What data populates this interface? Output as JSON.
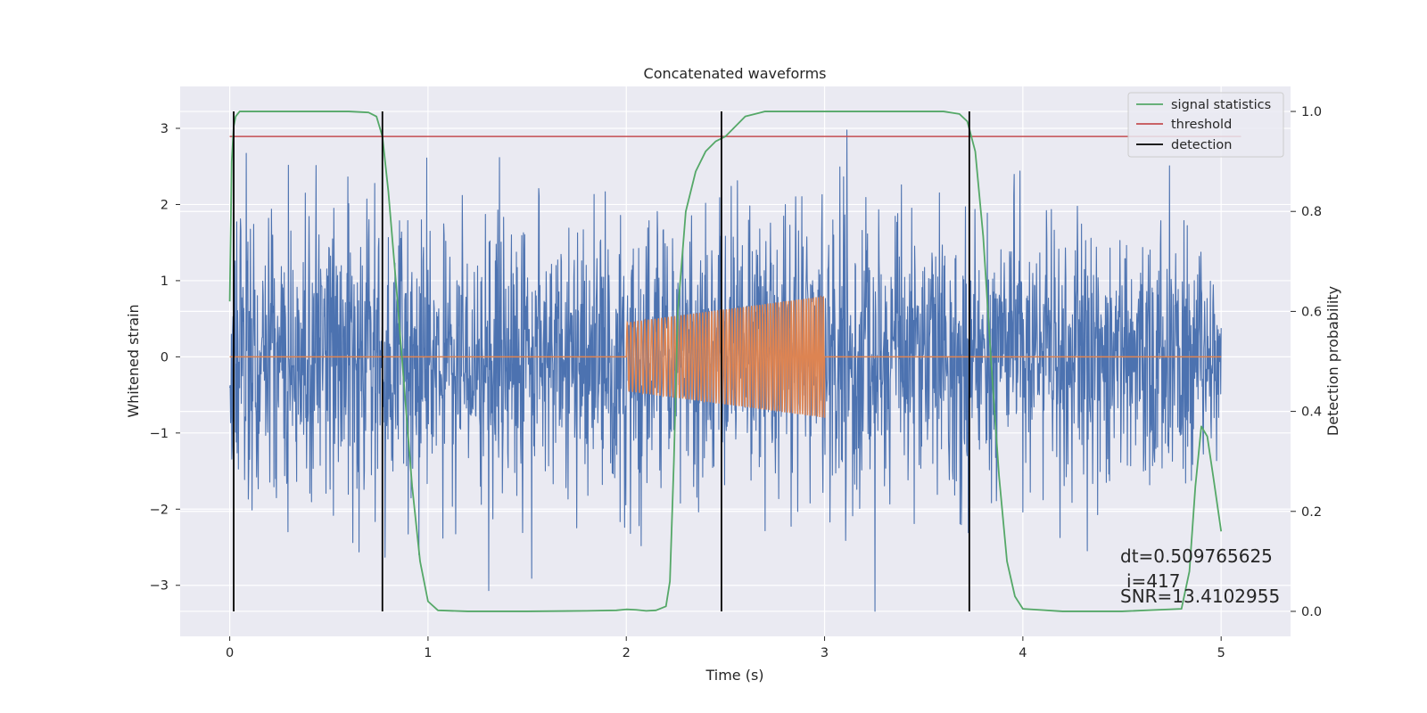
{
  "chart_data": {
    "type": "line",
    "title": "Concatenated waveforms",
    "xlabel": "Time (s)",
    "ylabel": "Whitened strain",
    "y2label": "Detection probability",
    "xlim": [
      -0.25,
      5.35
    ],
    "ylim": [
      -3.67,
      3.55
    ],
    "y2lim": [
      -0.05,
      1.05
    ],
    "x_ticks": [
      0,
      1,
      2,
      3,
      4,
      5
    ],
    "x_tick_labels": [
      "0",
      "1",
      "2",
      "3",
      "4",
      "5"
    ],
    "y_ticks": [
      -3,
      -2,
      -1,
      0,
      1,
      2,
      3
    ],
    "y_tick_labels": [
      "−3",
      "−2",
      "−1",
      "0",
      "1",
      "2",
      "3"
    ],
    "y2_ticks": [
      0.0,
      0.2,
      0.4,
      0.6,
      0.8,
      1.0
    ],
    "y2_tick_labels": [
      "0.0",
      "0.2",
      "0.4",
      "0.6",
      "0.8",
      "1.0"
    ],
    "grid": true,
    "legend_position": "top-right",
    "colors": {
      "strain": "#4c72b0",
      "template": "#dd8452",
      "signal_statistics": "#55a868",
      "threshold": "#c44e52",
      "detection": "#000000",
      "background": "#eaeaf2",
      "grid": "#ffffff"
    },
    "series": [
      {
        "name": "",
        "axis": "left",
        "kind": "noise",
        "x_range": [
          0,
          5
        ],
        "std": 0.9,
        "min": -3.35,
        "max": 3.2
      },
      {
        "name": "",
        "axis": "left",
        "kind": "chirp",
        "x_range": [
          0,
          5
        ],
        "chirp_start": 2.0,
        "chirp_end": 3.0,
        "amplitude_start": 0.45,
        "amplitude_end": 0.8
      },
      {
        "name": "signal statistics",
        "axis": "right",
        "x": [
          0.0,
          0.01,
          0.02,
          0.03,
          0.05,
          0.1,
          0.3,
          0.6,
          0.7,
          0.74,
          0.77,
          0.8,
          0.84,
          0.88,
          0.92,
          0.96,
          1.0,
          1.05,
          1.2,
          1.5,
          1.8,
          1.95,
          2.0,
          2.05,
          2.1,
          2.15,
          2.2,
          2.22,
          2.24,
          2.26,
          2.3,
          2.35,
          2.4,
          2.45,
          2.5,
          2.55,
          2.6,
          2.7,
          3.0,
          3.3,
          3.6,
          3.68,
          3.72,
          3.76,
          3.8,
          3.84,
          3.88,
          3.92,
          3.96,
          4.0,
          4.2,
          4.5,
          4.8,
          4.84,
          4.87,
          4.9,
          4.93,
          4.96,
          5.0
        ],
        "y": [
          0.62,
          0.9,
          0.97,
          0.99,
          1.0,
          1.0,
          1.0,
          1.0,
          0.998,
          0.99,
          0.95,
          0.84,
          0.65,
          0.45,
          0.25,
          0.1,
          0.02,
          0.002,
          0.0,
          0.0,
          0.001,
          0.002,
          0.004,
          0.003,
          0.001,
          0.002,
          0.01,
          0.06,
          0.3,
          0.6,
          0.8,
          0.88,
          0.92,
          0.94,
          0.95,
          0.97,
          0.99,
          1.0,
          1.0,
          1.0,
          1.0,
          0.995,
          0.98,
          0.92,
          0.75,
          0.5,
          0.27,
          0.1,
          0.03,
          0.005,
          0.0,
          0.0,
          0.005,
          0.08,
          0.25,
          0.37,
          0.35,
          0.27,
          0.16
        ]
      },
      {
        "name": "threshold",
        "axis": "right",
        "x": [
          0,
          5.1
        ],
        "y": [
          0.95,
          0.95
        ]
      },
      {
        "name": "detection",
        "axis": "right",
        "kind": "vertical-lines",
        "x": [
          0.02,
          0.77,
          2.48,
          3.73
        ],
        "y_range": [
          0.0,
          1.0
        ]
      }
    ],
    "annotations": [
      "dt=0.509765625",
      "i=417",
      "SNR=13.4102955"
    ]
  }
}
